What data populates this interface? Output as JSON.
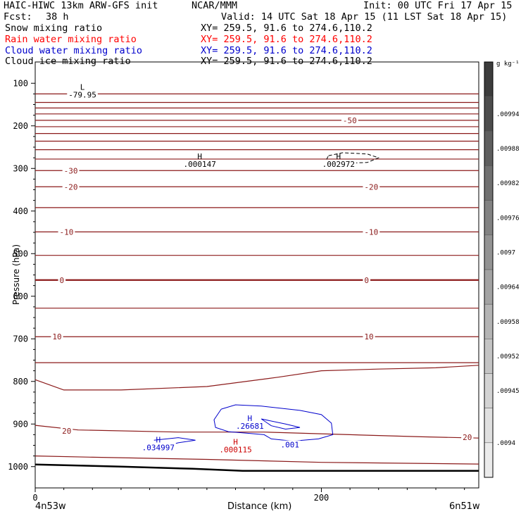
{
  "header": {
    "model": "HAIC-HIWC 13km ARW-GFS init",
    "org": "NCAR/MMM",
    "init": "Init: 00 UTC Fri 17 Apr 15",
    "fcst_label": "Fcst:",
    "fcst_value": "38 h",
    "valid": "Valid: 14 UTC Sat 18 Apr 15 (11 LST Sat 18 Apr 15)"
  },
  "fields": [
    {
      "name": "Snow mixing ratio",
      "xy": "XY= 259.5, 91.6 to 274.6,110.2",
      "color": "#000000"
    },
    {
      "name": "Rain water mixing ratio",
      "xy": "XY= 259.5, 91.6 to 274.6,110.2",
      "color": "#ff0000"
    },
    {
      "name": "Cloud water mixing ratio",
      "xy": "XY= 259.5, 91.6 to 274.6,110.2",
      "color": "#0000cc"
    },
    {
      "name": "Cloud ice mixing ratio",
      "xy": "XY= 259.5, 91.6 to 274.6,110.2",
      "color": "#000000"
    }
  ],
  "colorbar": {
    "unit": "g kg⁻¹",
    "labels": [
      ".00994",
      ".00988",
      ".00982",
      ".00976",
      ".0097",
      ".00964",
      ".00958",
      ".00952",
      ".00945",
      ".0094"
    ],
    "shades": [
      "#3c3c3c",
      "#4c4c4c",
      "#5e5e5e",
      "#707070",
      "#828282",
      "#939393",
      "#a3a3a3",
      "#b4b4b4",
      "#c4c4c4",
      "#d3d3d3",
      "#e0e0e0",
      "#ebebeb"
    ]
  },
  "chart_data": {
    "type": "line",
    "title": "",
    "xlabel": "Distance (km)",
    "ylabel": "Pressure (hPa)",
    "xlim": [
      0,
      310
    ],
    "ylim": [
      1050,
      50
    ],
    "x_ticks": [
      0,
      200
    ],
    "x_tick_labels": [
      "0",
      "200"
    ],
    "y_ticks": [
      100,
      200,
      300,
      400,
      500,
      600,
      700,
      800,
      900,
      1000
    ],
    "y_tick_labels": [
      "100",
      "200",
      "300",
      "400",
      "500",
      "600",
      "700",
      "800",
      "900",
      "1000"
    ],
    "endpoints": {
      "left": "4n53w",
      "right": "6n51w"
    },
    "temperature_isotherms": {
      "color": "#8b1a1a",
      "levels": [
        {
          "p": 125,
          "x": [
            0,
            310
          ],
          "label": "-79.95"
        },
        {
          "p": 145,
          "x": [
            0,
            310
          ]
        },
        {
          "p": 158,
          "x": [
            0,
            310
          ]
        },
        {
          "p": 172,
          "x": [
            0,
            310
          ]
        },
        {
          "p": 187,
          "x": [
            0,
            310
          ],
          "label": "-50"
        },
        {
          "p": 202,
          "x": [
            0,
            310
          ]
        },
        {
          "p": 218,
          "x": [
            0,
            310
          ]
        },
        {
          "p": 236,
          "x": [
            0,
            310
          ]
        },
        {
          "p": 256,
          "x": [
            0,
            310
          ]
        },
        {
          "p": 278,
          "x": [
            0,
            310
          ]
        },
        {
          "p": 305,
          "x": [
            0,
            310
          ],
          "label": "-30"
        },
        {
          "p": 343,
          "x": [
            0,
            310
          ],
          "label": "-20"
        },
        {
          "p": 392,
          "x": [
            0,
            310
          ]
        },
        {
          "p": 449,
          "x": [
            0,
            310
          ],
          "label": "-10"
        },
        {
          "p": 504,
          "x": [
            0,
            310
          ]
        },
        {
          "p": 562,
          "x": [
            0,
            310
          ],
          "label": "0",
          "bold": true
        },
        {
          "p": 628,
          "x": [
            0,
            310
          ]
        },
        {
          "p": 695,
          "x": [
            0,
            310
          ],
          "label": "10"
        },
        {
          "p": 756,
          "x": [
            0,
            310
          ]
        }
      ],
      "curved": [
        {
          "points": [
            [
              0,
              796
            ],
            [
              20,
              820
            ],
            [
              60,
              820
            ],
            [
              120,
              812
            ],
            [
              170,
              790
            ],
            [
              200,
              775
            ],
            [
              240,
              771
            ],
            [
              280,
              768
            ],
            [
              310,
              762
            ]
          ]
        },
        {
          "points": [
            [
              0,
              903
            ],
            [
              30,
              914
            ],
            [
              100,
              919
            ],
            [
              160,
              919
            ],
            [
              220,
              925
            ],
            [
              270,
              930
            ],
            [
              310,
              933
            ]
          ],
          "label": "20"
        },
        {
          "points": [
            [
              0,
              975
            ],
            [
              40,
              978
            ],
            [
              120,
              983
            ],
            [
              200,
              990
            ],
            [
              310,
              994
            ]
          ]
        }
      ]
    },
    "ground": [
      [
        0,
        995
      ],
      [
        60,
        1000
      ],
      [
        110,
        1005
      ],
      [
        145,
        1010
      ],
      [
        200,
        1010
      ],
      [
        310,
        1010
      ]
    ],
    "snow": [
      {
        "label": "L",
        "value": "-79.95",
        "x": 33,
        "p": 115
      },
      {
        "label": "H",
        "value": ".000147",
        "x": 115,
        "p": 278
      },
      {
        "label": "H",
        "value": ".002972",
        "x": 212,
        "p": 278
      }
    ],
    "snow_contour": [
      [
        205,
        270
      ],
      [
        215,
        263
      ],
      [
        232,
        266
      ],
      [
        240,
        275
      ],
      [
        232,
        286
      ],
      [
        215,
        288
      ],
      [
        203,
        283
      ],
      [
        205,
        270
      ]
    ],
    "rain": [
      {
        "label": "H",
        "value": ".000115",
        "x": 140,
        "p": 948
      }
    ],
    "cloud_water": [
      {
        "label": "H",
        "value": ".26681",
        "x": 150,
        "p": 893
      },
      {
        "label": "H",
        "value": ".034997",
        "x": 86,
        "p": 943
      },
      {
        "label": "",
        "value": ".001",
        "x": 178,
        "p": 937
      }
    ],
    "cloud_water_contours": [
      [
        [
          130,
          865
        ],
        [
          140,
          855
        ],
        [
          158,
          858
        ],
        [
          185,
          868
        ],
        [
          200,
          878
        ],
        [
          207,
          898
        ],
        [
          208,
          925
        ],
        [
          198,
          935
        ],
        [
          180,
          940
        ],
        [
          165,
          935
        ],
        [
          160,
          925
        ],
        [
          150,
          922
        ],
        [
          135,
          918
        ],
        [
          126,
          908
        ],
        [
          125,
          890
        ],
        [
          130,
          865
        ]
      ],
      [
        [
          158,
          888
        ],
        [
          175,
          900
        ],
        [
          185,
          908
        ],
        [
          175,
          912
        ],
        [
          165,
          904
        ],
        [
          158,
          888
        ]
      ],
      [
        [
          83,
          938
        ],
        [
          100,
          932
        ],
        [
          112,
          938
        ],
        [
          100,
          944
        ],
        [
          88,
          955
        ],
        [
          90,
          958
        ]
      ]
    ]
  }
}
